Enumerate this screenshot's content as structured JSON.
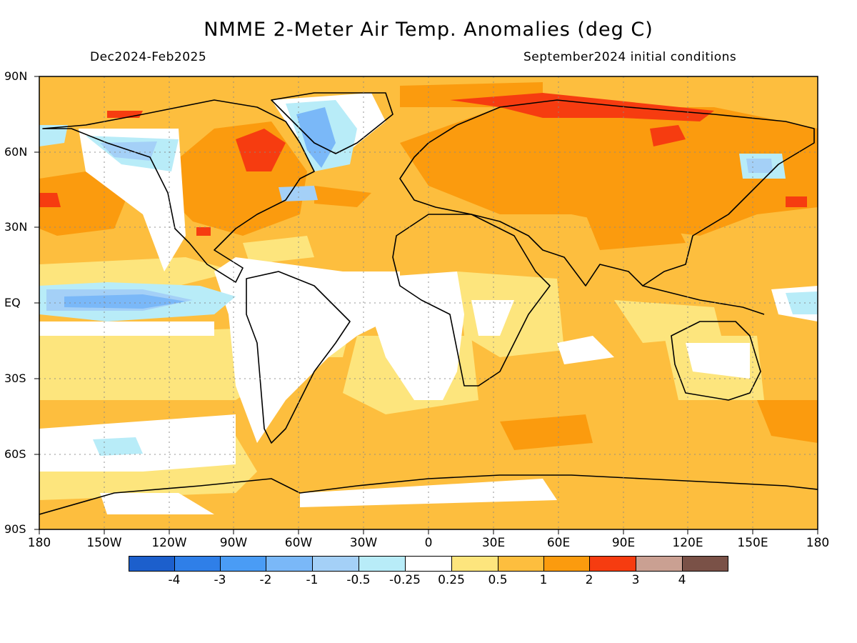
{
  "title": "NMME 2-Meter Air Temp. Anomalies (deg C)",
  "subtitle_left": "Dec2024-Feb2025",
  "subtitle_right": "September2024 initial conditions",
  "lat_labels": [
    "90N",
    "60N",
    "30N",
    "EQ",
    "30S",
    "60S",
    "90S"
  ],
  "lon_labels": [
    "180",
    "150W",
    "120W",
    "90W",
    "60W",
    "30W",
    "0",
    "30E",
    "60E",
    "90E",
    "120E",
    "150E",
    "180"
  ],
  "colorbar": {
    "colors": [
      "#1c5fcc",
      "#2f7fe8",
      "#4a9cf5",
      "#7ab8f8",
      "#a4d0f7",
      "#b8ecf8",
      "#ffffff",
      "#fde57d",
      "#fdbe3e",
      "#fb9b0e",
      "#f63c10",
      "#caa092",
      "#7a5147"
    ],
    "labels": [
      "-4",
      "-3",
      "-2",
      "-1",
      "-0.5",
      "-0.25",
      "0.25",
      "0.5",
      "1",
      "2",
      "3",
      "4"
    ]
  },
  "anomaly_colors": {
    "background_0_5_to_1": "#fdbe3e",
    "range_0_25_to_0_5": "#fde57d",
    "range_1_to_2": "#fb9b0e",
    "range_2_to_3": "#f63c10",
    "near_zero": "#ffffff",
    "range_neg0_25_to_neg0_5": "#b8ecf8",
    "range_neg0_5_to_neg1": "#a4d0f7",
    "range_neg1_to_neg2": "#7ab8f8"
  }
}
